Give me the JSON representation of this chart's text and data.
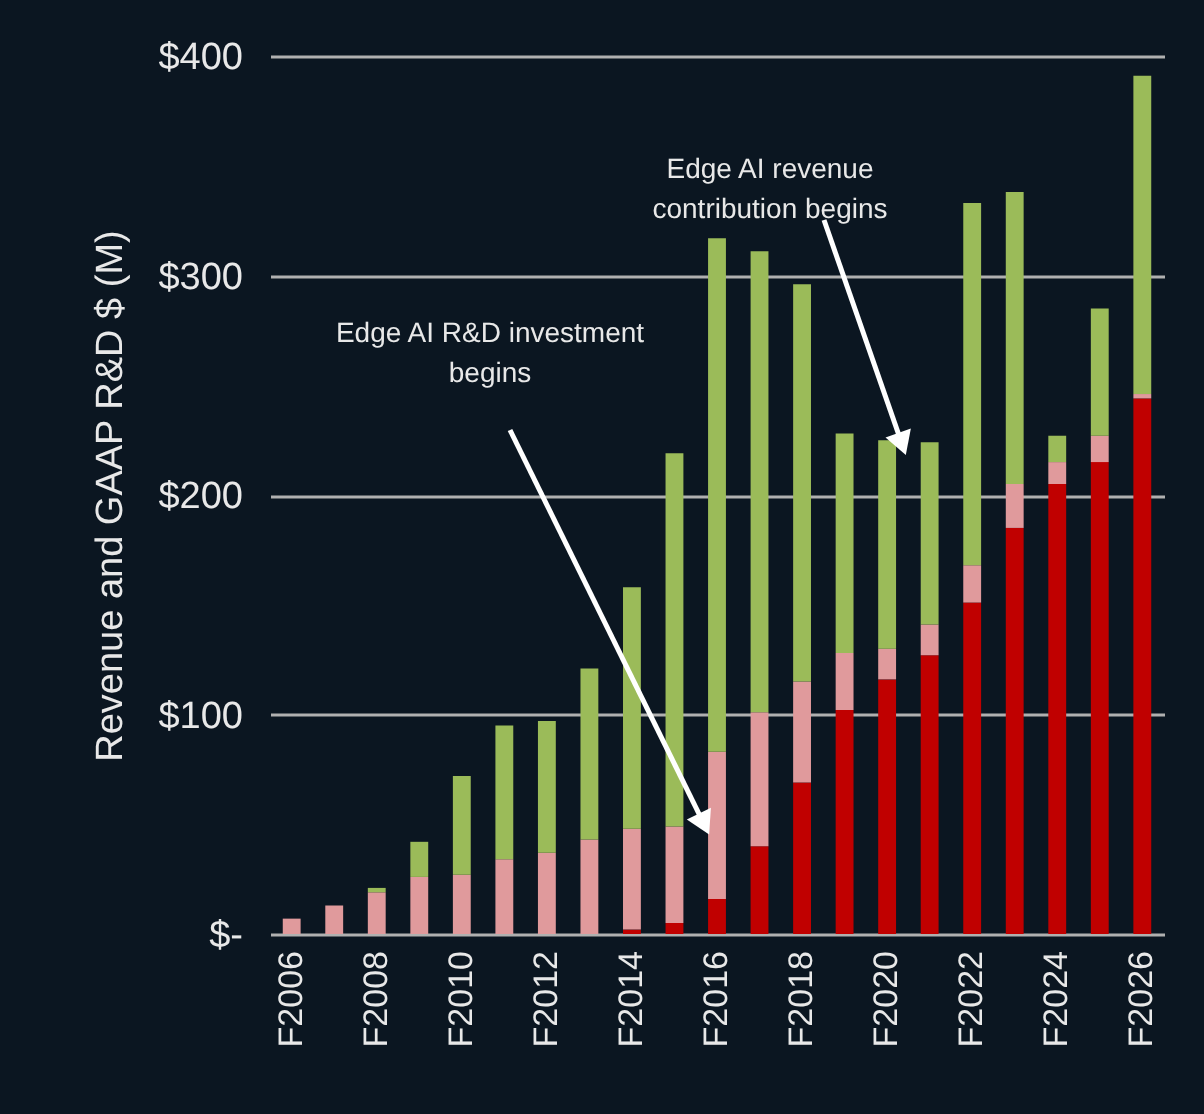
{
  "chart_data": {
    "type": "bar",
    "stacked": true,
    "ylabel": "Revenue and GAAP R&D $ (M)",
    "categories": [
      "F2006",
      null,
      "F2008",
      null,
      "F2010",
      null,
      "F2012",
      null,
      "F2014",
      null,
      "F2016",
      null,
      "F2018",
      null,
      "F2020",
      null,
      "F2022",
      null,
      "F2024",
      null,
      "F2026"
    ],
    "series": [
      {
        "color": "#c00000",
        "values": [
          0,
          0,
          0,
          0,
          0,
          0,
          0,
          0,
          2,
          5,
          16,
          40,
          69,
          102,
          116,
          127,
          151,
          185,
          205,
          215,
          244
        ]
      },
      {
        "color": "#e09a9c",
        "values": [
          7,
          13,
          19,
          26,
          27,
          34,
          37,
          43,
          46,
          44,
          67,
          61,
          46,
          26,
          14,
          14,
          17,
          20,
          10,
          12,
          2
        ]
      },
      {
        "color": "#9bbb59",
        "values": [
          0,
          0,
          2,
          16,
          45,
          61,
          60,
          78,
          110,
          170,
          234,
          210,
          181,
          100,
          95,
          83,
          165,
          133,
          12,
          58,
          145
        ]
      }
    ],
    "ylim": [
      0,
      400
    ],
    "yticks": [
      {
        "value": 0,
        "label": "$-"
      },
      {
        "value": 100,
        "label": "$100"
      },
      {
        "value": 200,
        "label": "$200"
      },
      {
        "value": 300,
        "label": "$300"
      },
      {
        "value": 400,
        "label": "$400"
      }
    ],
    "grid": "y",
    "legend": false,
    "annotations": [
      "Edge AI R&D investment begins",
      "Edge AI revenue contribution begins"
    ]
  }
}
